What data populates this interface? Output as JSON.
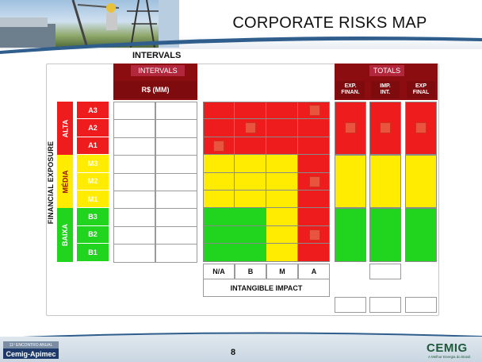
{
  "header": {
    "title": "CORPORATE RISKS MAP"
  },
  "section_label": "INTERVALS",
  "intervals_header": {
    "pill": "INTERVALS",
    "subheader": "R$ (MM)"
  },
  "totals_header": {
    "pill": "TOTALS",
    "columns": [
      "EXP.\nFINAN.",
      "IMP.\nINT.",
      "EXP\nFINAL"
    ]
  },
  "financial_exposure": {
    "label": "FINANCIAL EXPOSURE",
    "bands": [
      {
        "name": "ALTA",
        "color": "#ee1c1c"
      },
      {
        "name": "MÉDIA",
        "color": "#ffec00"
      },
      {
        "name": "BAIXA",
        "color": "#21d41d"
      }
    ],
    "levels": [
      {
        "label": "A3",
        "color": "#ee1c1c"
      },
      {
        "label": "A2",
        "color": "#ee1c1c"
      },
      {
        "label": "A1",
        "color": "#ee1c1c"
      },
      {
        "label": "M3",
        "color": "#ffec00"
      },
      {
        "label": "M2",
        "color": "#ffec00"
      },
      {
        "label": "M1",
        "color": "#ffec00"
      },
      {
        "label": "B3",
        "color": "#21d41d"
      },
      {
        "label": "B2",
        "color": "#21d41d"
      },
      {
        "label": "B1",
        "color": "#21d41d"
      }
    ]
  },
  "matrix": {
    "colors": {
      "R": "#ee1c1c",
      "Y": "#ffec00",
      "G": "#21d41d"
    },
    "rows": [
      [
        "R",
        "R",
        "R",
        "R"
      ],
      [
        "R",
        "R",
        "R",
        "R"
      ],
      [
        "R",
        "R",
        "R",
        "R"
      ],
      [
        "Y",
        "Y",
        "Y",
        "R"
      ],
      [
        "Y",
        "Y",
        "Y",
        "R"
      ],
      [
        "Y",
        "Y",
        "Y",
        "R"
      ],
      [
        "G",
        "G",
        "Y",
        "R"
      ],
      [
        "G",
        "G",
        "Y",
        "R"
      ],
      [
        "G",
        "G",
        "Y",
        "R"
      ]
    ],
    "markers": [
      [
        0,
        3
      ],
      [
        1,
        1
      ],
      [
        2,
        0
      ],
      [
        4,
        3
      ],
      [
        7,
        3
      ]
    ]
  },
  "totals_blocks": {
    "bands": [
      "R",
      "Y",
      "G"
    ],
    "markers": [
      [
        1,
        0
      ],
      [
        1,
        1
      ],
      [
        1,
        2
      ]
    ]
  },
  "intangible_impact": {
    "label": "INTANGIBLE IMPACT",
    "categories": [
      "N/A",
      "B",
      "M",
      "A"
    ]
  },
  "footer": {
    "page_number": "8",
    "event_line1": "11º ENCONTRO ANUAL",
    "event_name": "Cemig-Apimec",
    "company_logo": "CEMIG",
    "company_slogan": "A Melhor Energia do Brasil."
  }
}
